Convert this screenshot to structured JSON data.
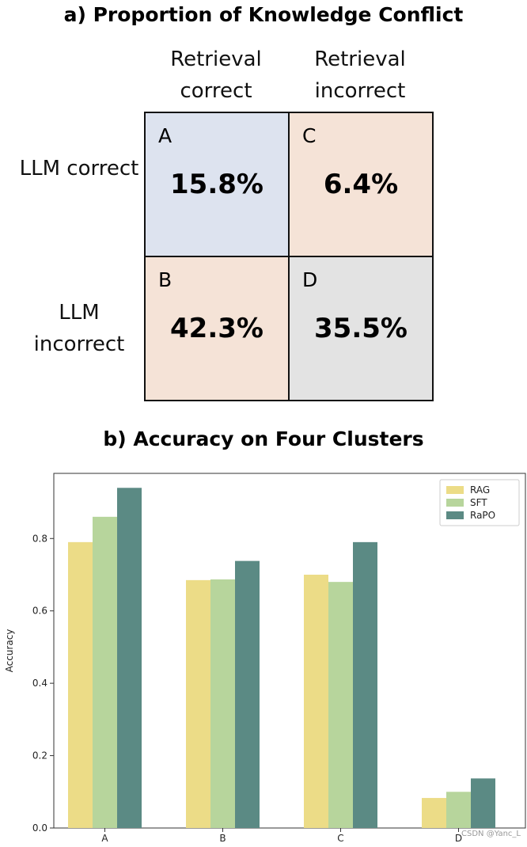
{
  "grid": {
    "title": "a) Proportion of Knowledge Conflict",
    "col_headers": [
      "Retrieval correct",
      "Retrieval incorrect"
    ],
    "row_headers": [
      "LLM correct",
      "LLM incorrect"
    ],
    "cells": [
      {
        "letter": "A",
        "value": "15.8%",
        "color": "#dde3ef"
      },
      {
        "letter": "C",
        "value": "6.4%",
        "color": "#f5e3d7"
      },
      {
        "letter": "B",
        "value": "42.3%",
        "color": "#f5e3d7"
      },
      {
        "letter": "D",
        "value": "35.5%",
        "color": "#e3e3e3"
      }
    ]
  },
  "chart_data": {
    "type": "bar",
    "title": "b) Accuracy on Four Clusters",
    "ylabel": "Accuracy",
    "xlabel": "",
    "categories": [
      "A",
      "B",
      "C",
      "D"
    ],
    "series": [
      {
        "name": "RAG",
        "color": "#ecdc87",
        "values": [
          0.79,
          0.685,
          0.7,
          0.083
        ]
      },
      {
        "name": "SFT",
        "color": "#b7d59c",
        "values": [
          0.86,
          0.687,
          0.68,
          0.1
        ]
      },
      {
        "name": "RaPO",
        "color": "#5b8a84",
        "values": [
          0.94,
          0.738,
          0.79,
          0.137
        ]
      }
    ],
    "ylim": [
      0,
      0.98
    ],
    "yticks": [
      "0.0",
      "0.2",
      "0.4",
      "0.6",
      "0.8"
    ],
    "legend": "top-right",
    "grid": false
  },
  "watermark": "CSDN @Yanc_L"
}
